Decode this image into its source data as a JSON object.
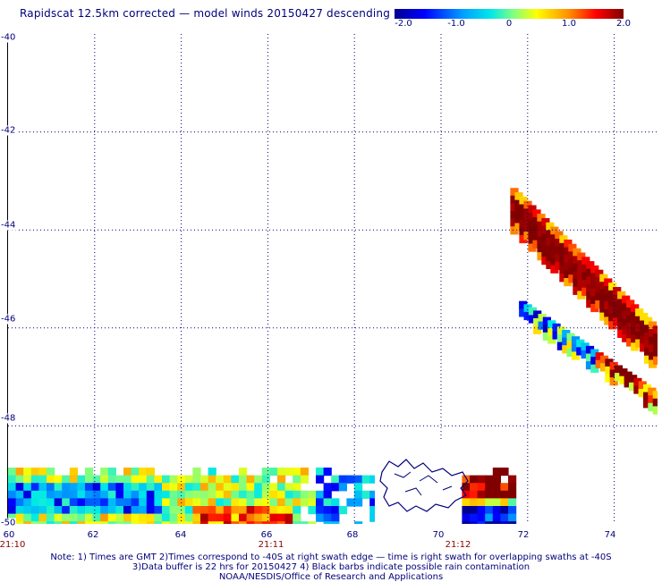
{
  "title": "Rapidscat 12.5km corrected — model winds 20150427 descending",
  "colorbar": {
    "labels": [
      "-2.0",
      "-1.0",
      "0",
      "1.0",
      "2.0"
    ],
    "min": -2.0,
    "max": 2.0,
    "colors": [
      "#000090",
      "#0000ff",
      "#00a0ff",
      "#00e8e8",
      "#80ff80",
      "#ffff00",
      "#ff9000",
      "#ff0000",
      "#800000"
    ]
  },
  "map": {
    "lon_range": [
      60,
      75
    ],
    "lat_range": [
      -50,
      -40
    ],
    "lat_labels": [
      "-40",
      "-42",
      "-44",
      "-46",
      "-48",
      "-50"
    ],
    "lon_labels": [
      "60",
      "62",
      "64",
      "66",
      "68",
      "70",
      "72",
      "74"
    ],
    "time_labels": [
      {
        "lon": 60,
        "text": "21:10"
      },
      {
        "lon": 66,
        "text": "21:11"
      },
      {
        "lon": 70.5,
        "text": "21:12"
      }
    ],
    "gridlines": "dotted",
    "coastline_color": "#00007a"
  },
  "notes": [
    "Note: 1) Times are GMT 2)Times correspond to -40S at right swath edge — time is right swath for overlapping swaths at -40S",
    "3)Data buffer is 22 hrs for 20150427 4) Black barbs indicate possible rain contamination",
    "NOAA/NESDIS/Office of Research and Applications"
  ]
}
